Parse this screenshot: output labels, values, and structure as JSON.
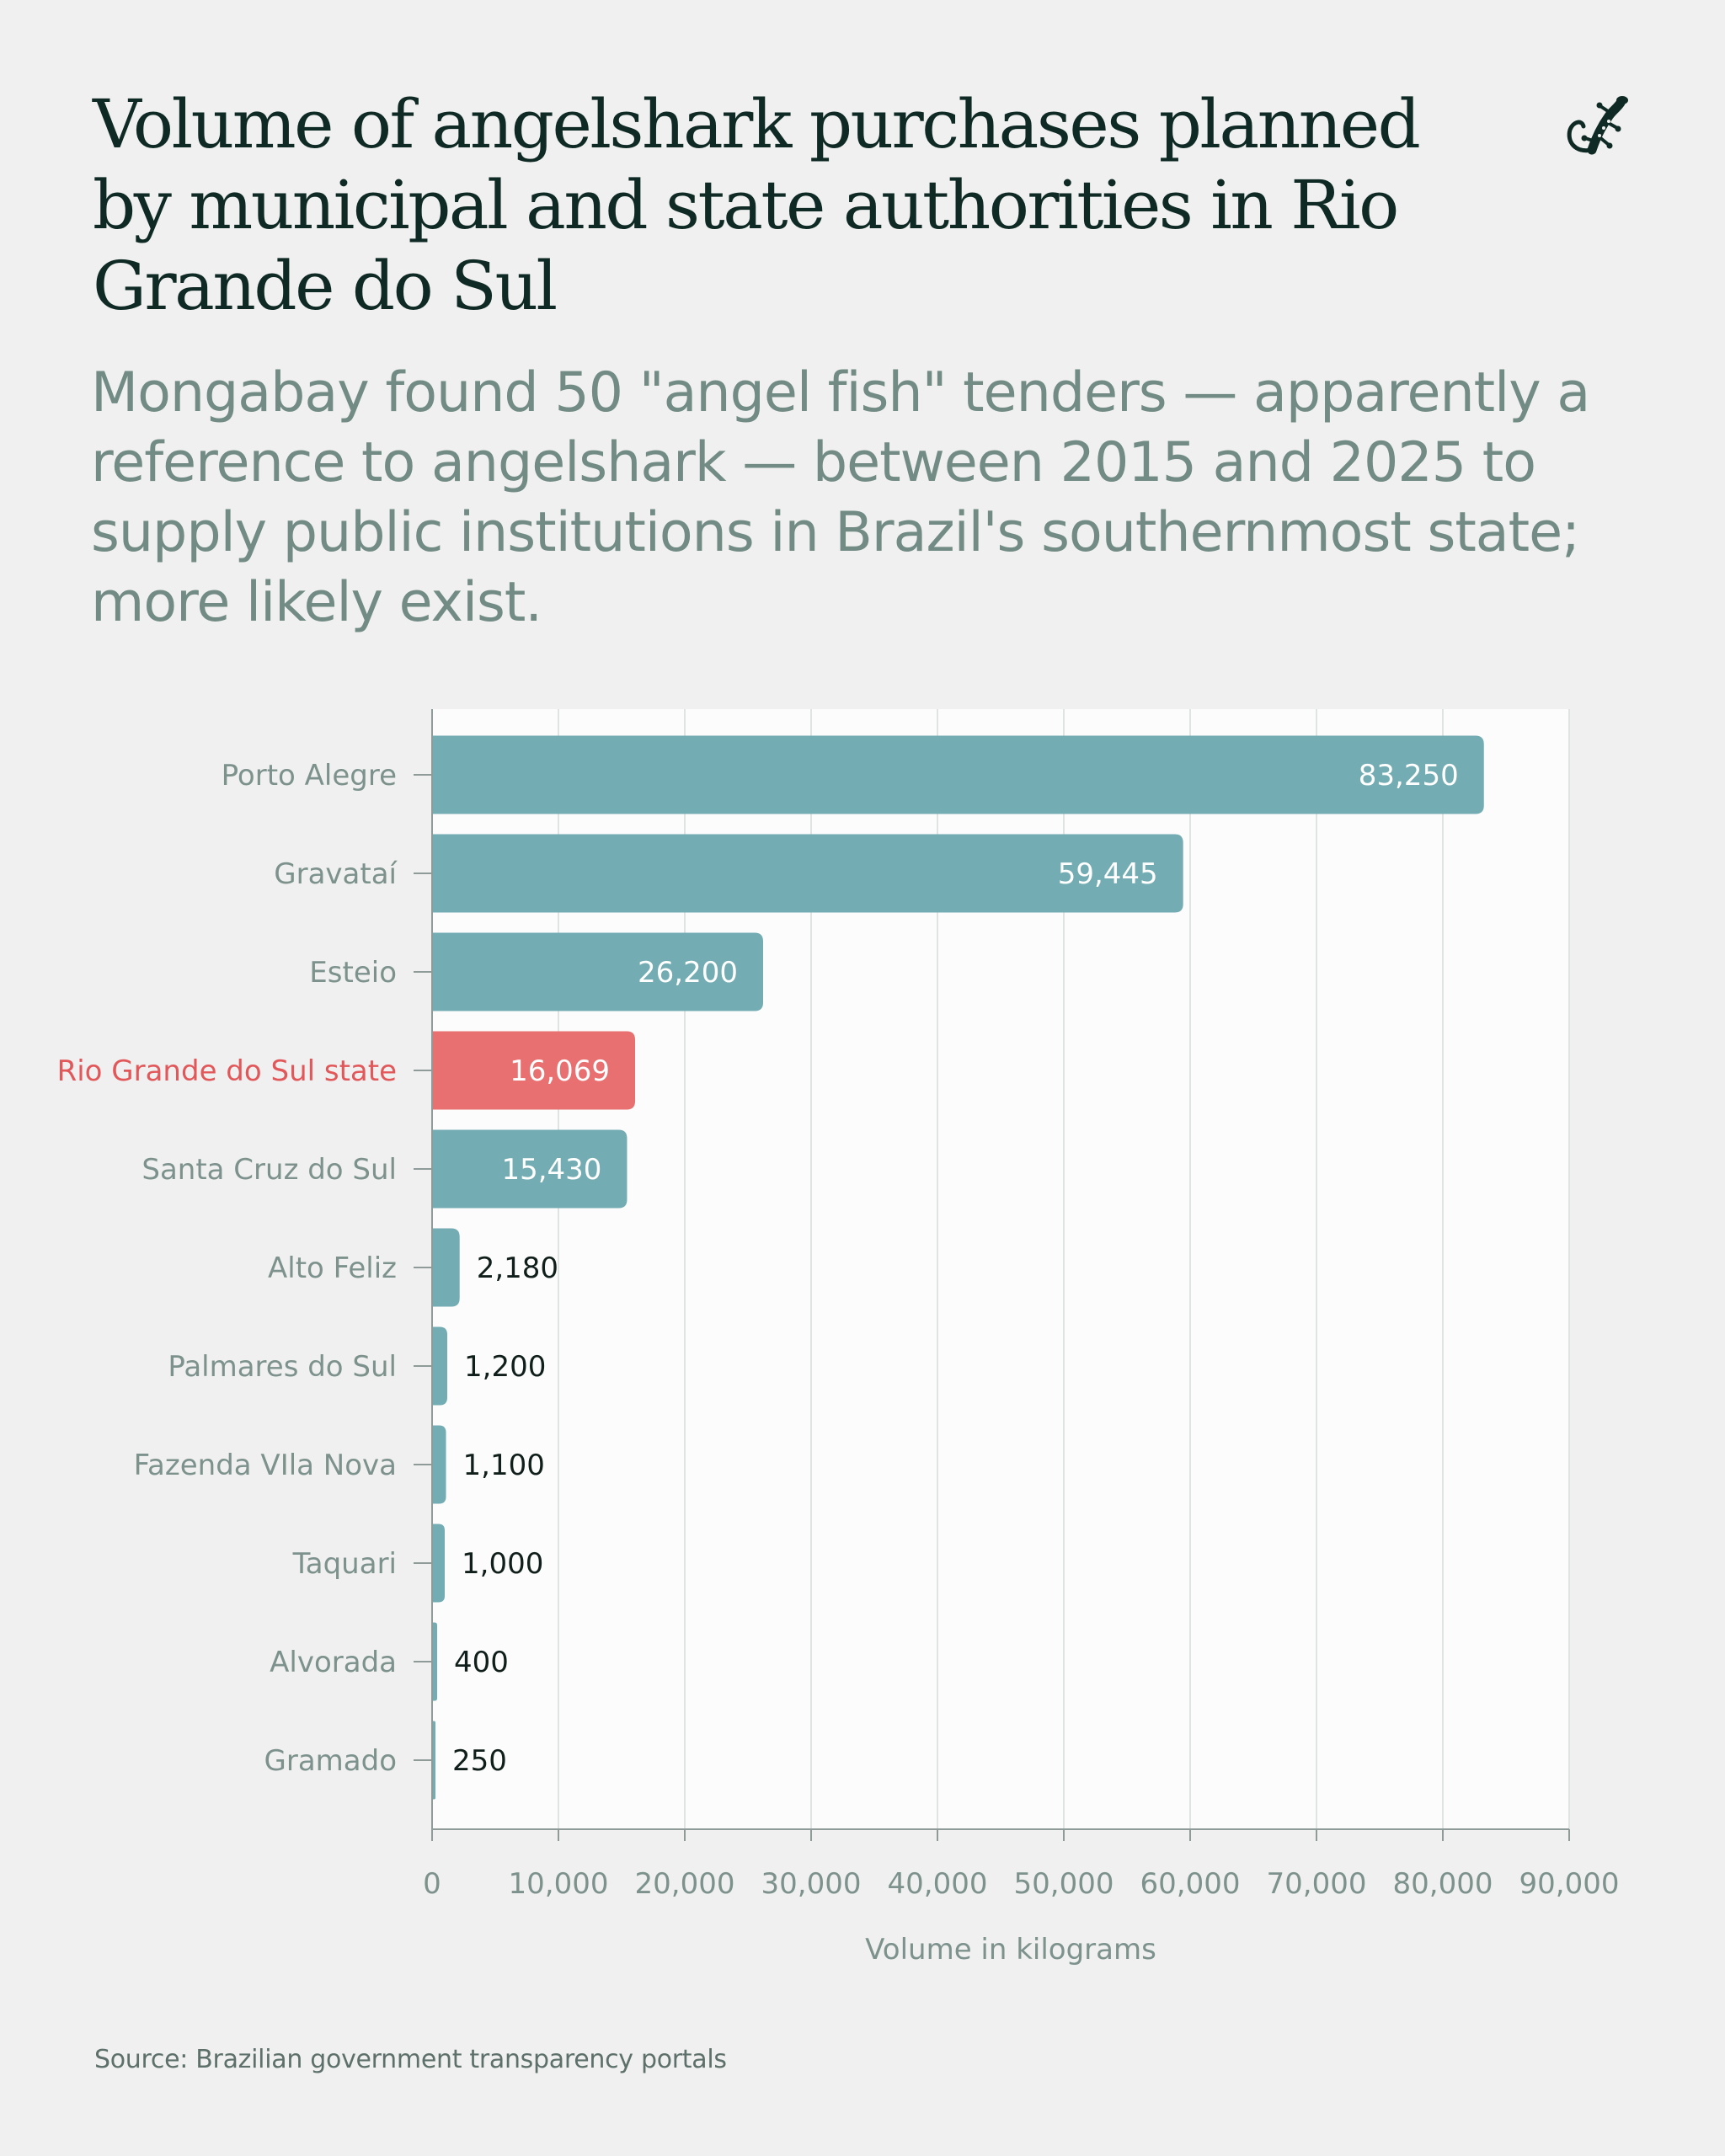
{
  "header": {
    "title": "Volume of angelshark purchases planned by municipal and state authorities in Rio Grande do Sul",
    "subtitle": "Mongabay found 50 \"angel fish\" tenders — apparently a reference to angelshark — between 2015 and 2025 to supply public institutions in Brazil's southernmost state; more likely exist.",
    "logo_icon": "gecko-icon"
  },
  "colors": {
    "background": "#eff0ef",
    "plot_background": "#fcfcfc",
    "bar_default": "#73adb3",
    "bar_highlight": "#e97070",
    "label_default": "#7d928d",
    "label_highlight": "#e2575a",
    "value_inside": "#ffffff",
    "value_outside": "#101f1b",
    "grid": "#dfe3e1",
    "axis": "#8e9b98"
  },
  "chart_data": {
    "type": "bar",
    "orientation": "horizontal",
    "categories": [
      "Porto Alegre",
      "Gravataí",
      "Esteio",
      "Rio Grande do Sul state",
      "Santa Cruz do Sul",
      "Alto Feliz",
      "Palmares do Sul",
      "Fazenda VIla Nova",
      "Taquari",
      "Alvorada",
      "Gramado"
    ],
    "values": [
      83250,
      59445,
      26200,
      16069,
      15430,
      2180,
      1200,
      1100,
      1000,
      400,
      250
    ],
    "value_labels": [
      "83,250",
      "59,445",
      "26,200",
      "16,069",
      "15,430",
      "2,180",
      "1,200",
      "1,100",
      "1,000",
      "400",
      "250"
    ],
    "highlight": "Rio Grande do Sul state",
    "xlabel": "Volume in kilograms",
    "ylabel": "",
    "xlim": [
      0,
      90000
    ],
    "x_ticks": [
      0,
      10000,
      20000,
      30000,
      40000,
      50000,
      60000,
      70000,
      80000,
      90000
    ],
    "x_tick_labels": [
      "0",
      "10,000",
      "20,000",
      "30,000",
      "40,000",
      "50,000",
      "60,000",
      "70,000",
      "80,000",
      "90,000"
    ],
    "grid": "vertical",
    "legend": "none"
  },
  "footer": {
    "source": "Source: Brazilian government transparency portals"
  }
}
